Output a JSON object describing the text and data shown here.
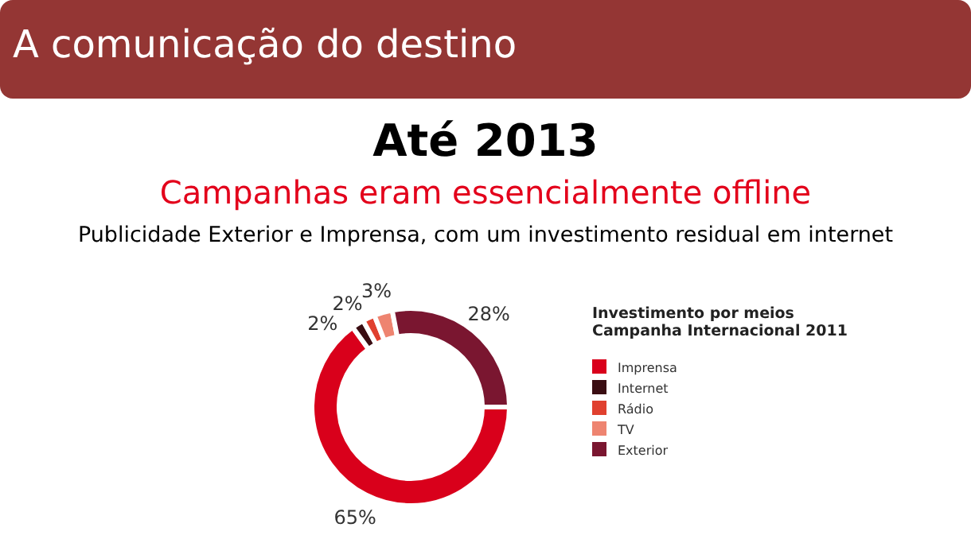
{
  "chart_data": {
    "type": "donut",
    "title": "A comunicação do destino",
    "subtitle": "Até 2013",
    "annotations": [
      "Campanhas eram essencialmente offline",
      "Publicidade Exterior e Imprensa, com um investimento residual em internet"
    ],
    "legend_title": "Investimento por meios\nCampanha Internacional 2011",
    "categories": [
      "Imprensa",
      "Internet",
      "Rádio",
      "TV",
      "Exterior"
    ],
    "values": [
      65,
      2,
      2,
      3,
      28
    ],
    "value_labels": [
      "65%",
      "2%",
      "2%",
      "3%",
      "28%"
    ],
    "colors": [
      "#d9001b",
      "#3a0d12",
      "#e0402f",
      "#ee8470",
      "#7a1630"
    ],
    "legend": "right"
  }
}
